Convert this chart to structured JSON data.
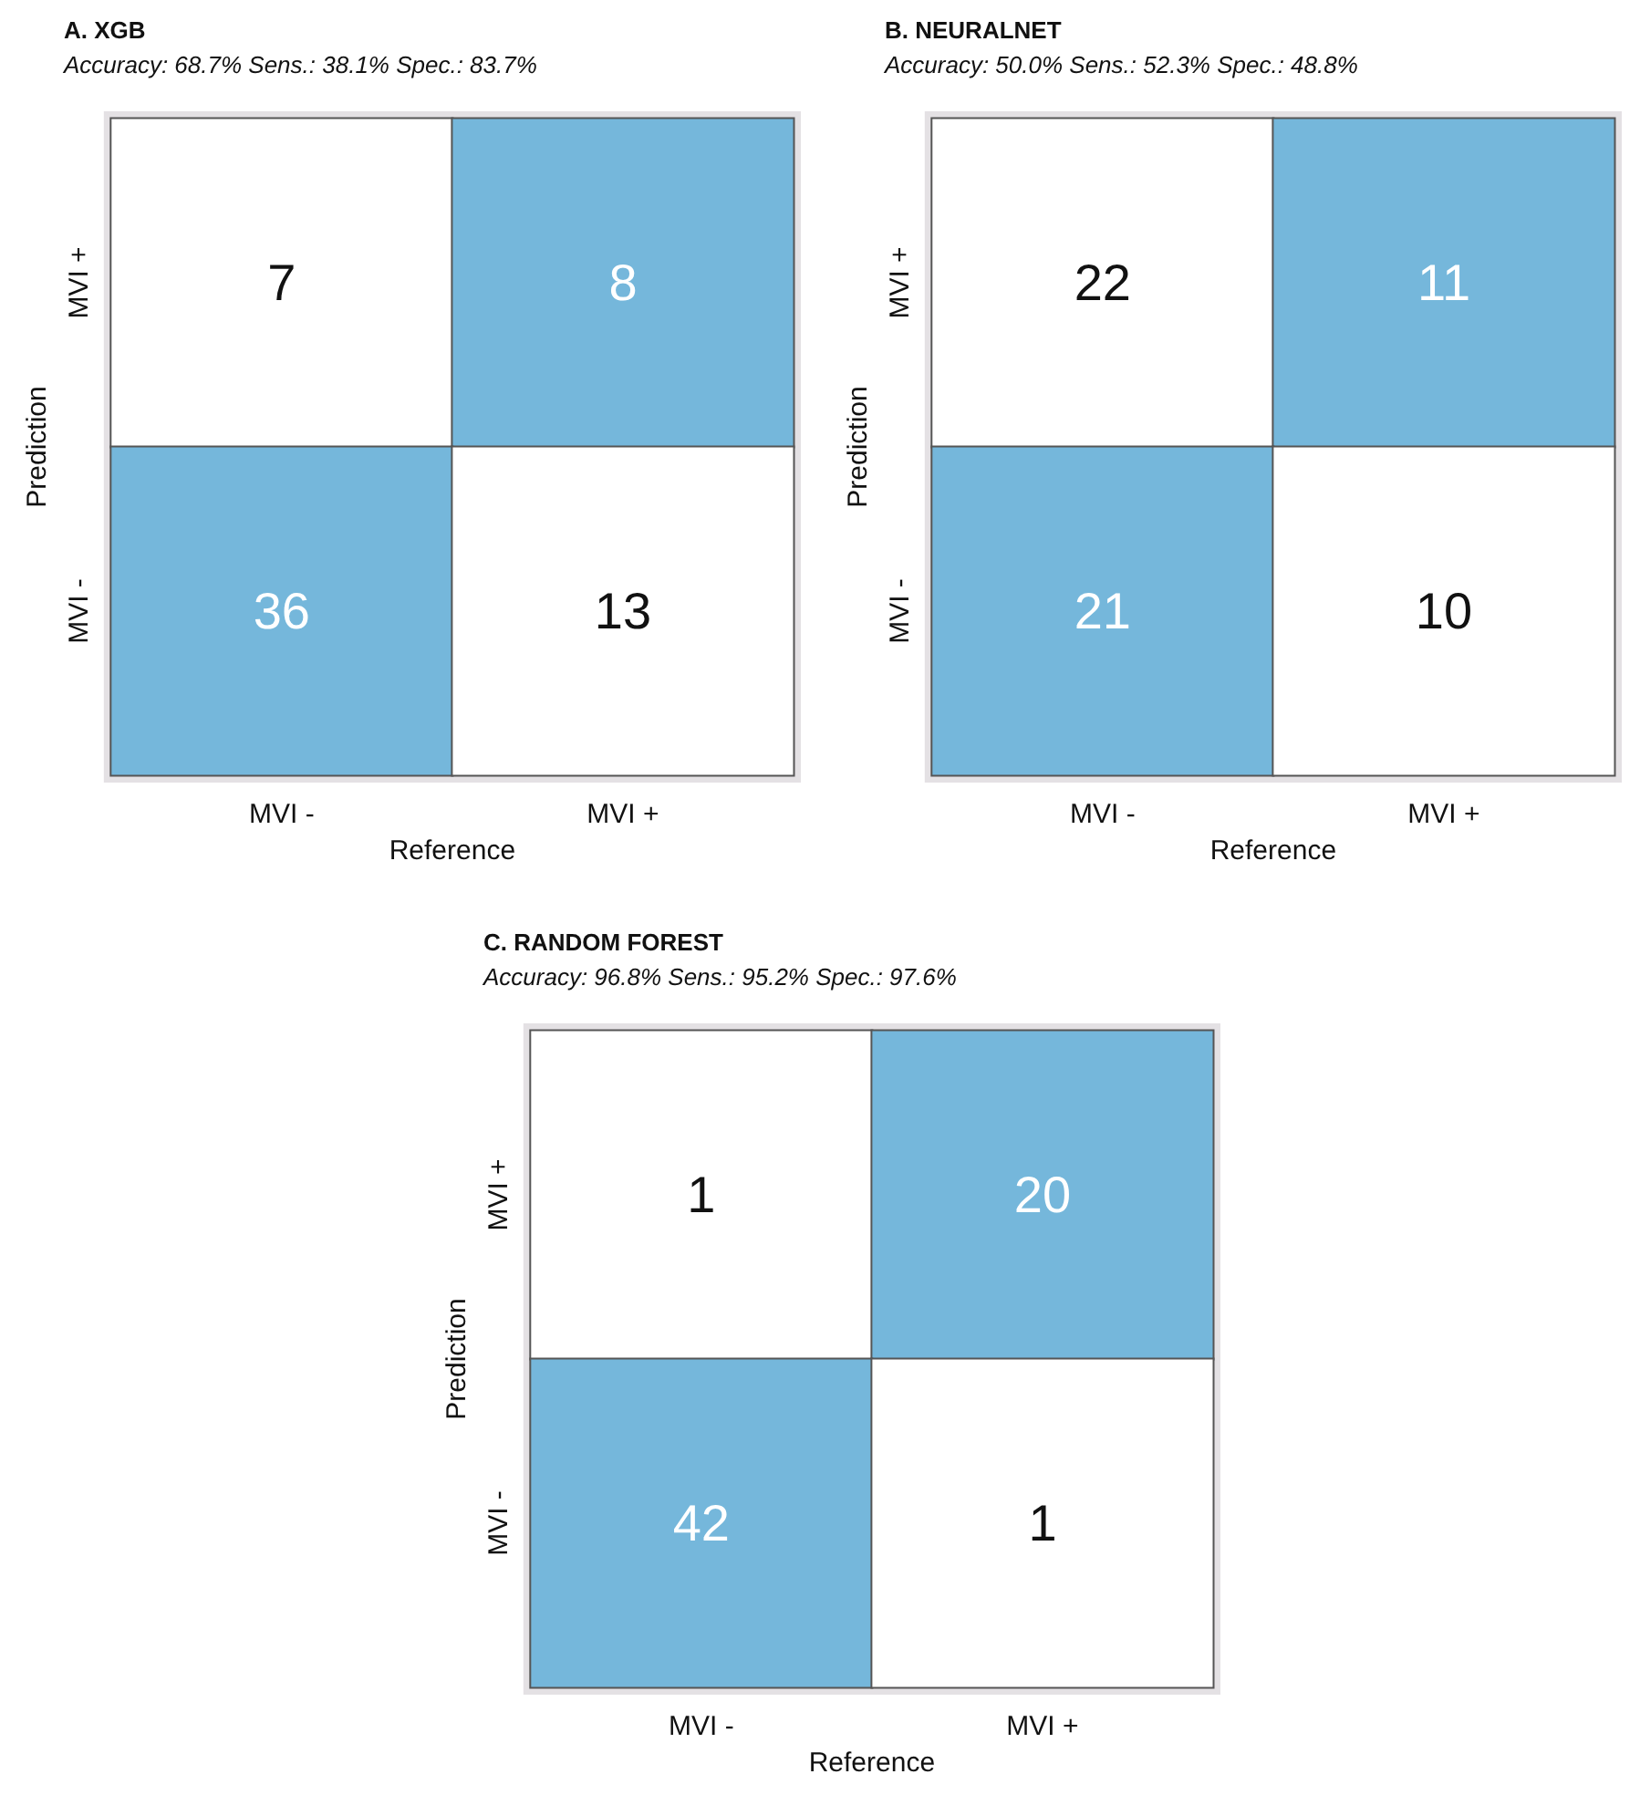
{
  "chart_data": [
    {
      "type": "heatmap",
      "title": "A. XGB",
      "subtitle": "Accuracy: 68.7% Sens.: 38.1% Spec.: 83.7%",
      "xlabel": "Reference",
      "ylabel": "Prediction",
      "categories": [
        "MVI -",
        "MVI +"
      ],
      "y_categories": [
        "MVI +",
        "MVI -"
      ],
      "cells": [
        [
          7,
          8
        ],
        [
          36,
          13
        ]
      ],
      "colors": [
        [
          "#ffffff",
          "#75b7db"
        ],
        [
          "#75b7db",
          "#ffffff"
        ]
      ],
      "data_labels": true
    },
    {
      "type": "heatmap",
      "title": "B. NEURALNET",
      "subtitle": "Accuracy: 50.0% Sens.: 52.3% Spec.: 48.8%",
      "xlabel": "Reference",
      "ylabel": "Prediction",
      "categories": [
        "MVI -",
        "MVI +"
      ],
      "y_categories": [
        "MVI +",
        "MVI -"
      ],
      "cells": [
        [
          22,
          11
        ],
        [
          21,
          10
        ]
      ],
      "colors": [
        [
          "#ffffff",
          "#75b7db"
        ],
        [
          "#75b7db",
          "#ffffff"
        ]
      ],
      "data_labels": true
    },
    {
      "type": "heatmap",
      "title": "C. RANDOM FOREST",
      "subtitle": "Accuracy: 96.8% Sens.: 95.2% Spec.: 97.6%",
      "xlabel": "Reference",
      "ylabel": "Prediction",
      "categories": [
        "MVI -",
        "MVI +"
      ],
      "y_categories": [
        "MVI +",
        "MVI -"
      ],
      "cells": [
        [
          1,
          20
        ],
        [
          42,
          1
        ]
      ],
      "colors": [
        [
          "#ffffff",
          "#75b7db"
        ],
        [
          "#75b7db",
          "#ffffff"
        ]
      ],
      "data_labels": true
    }
  ]
}
